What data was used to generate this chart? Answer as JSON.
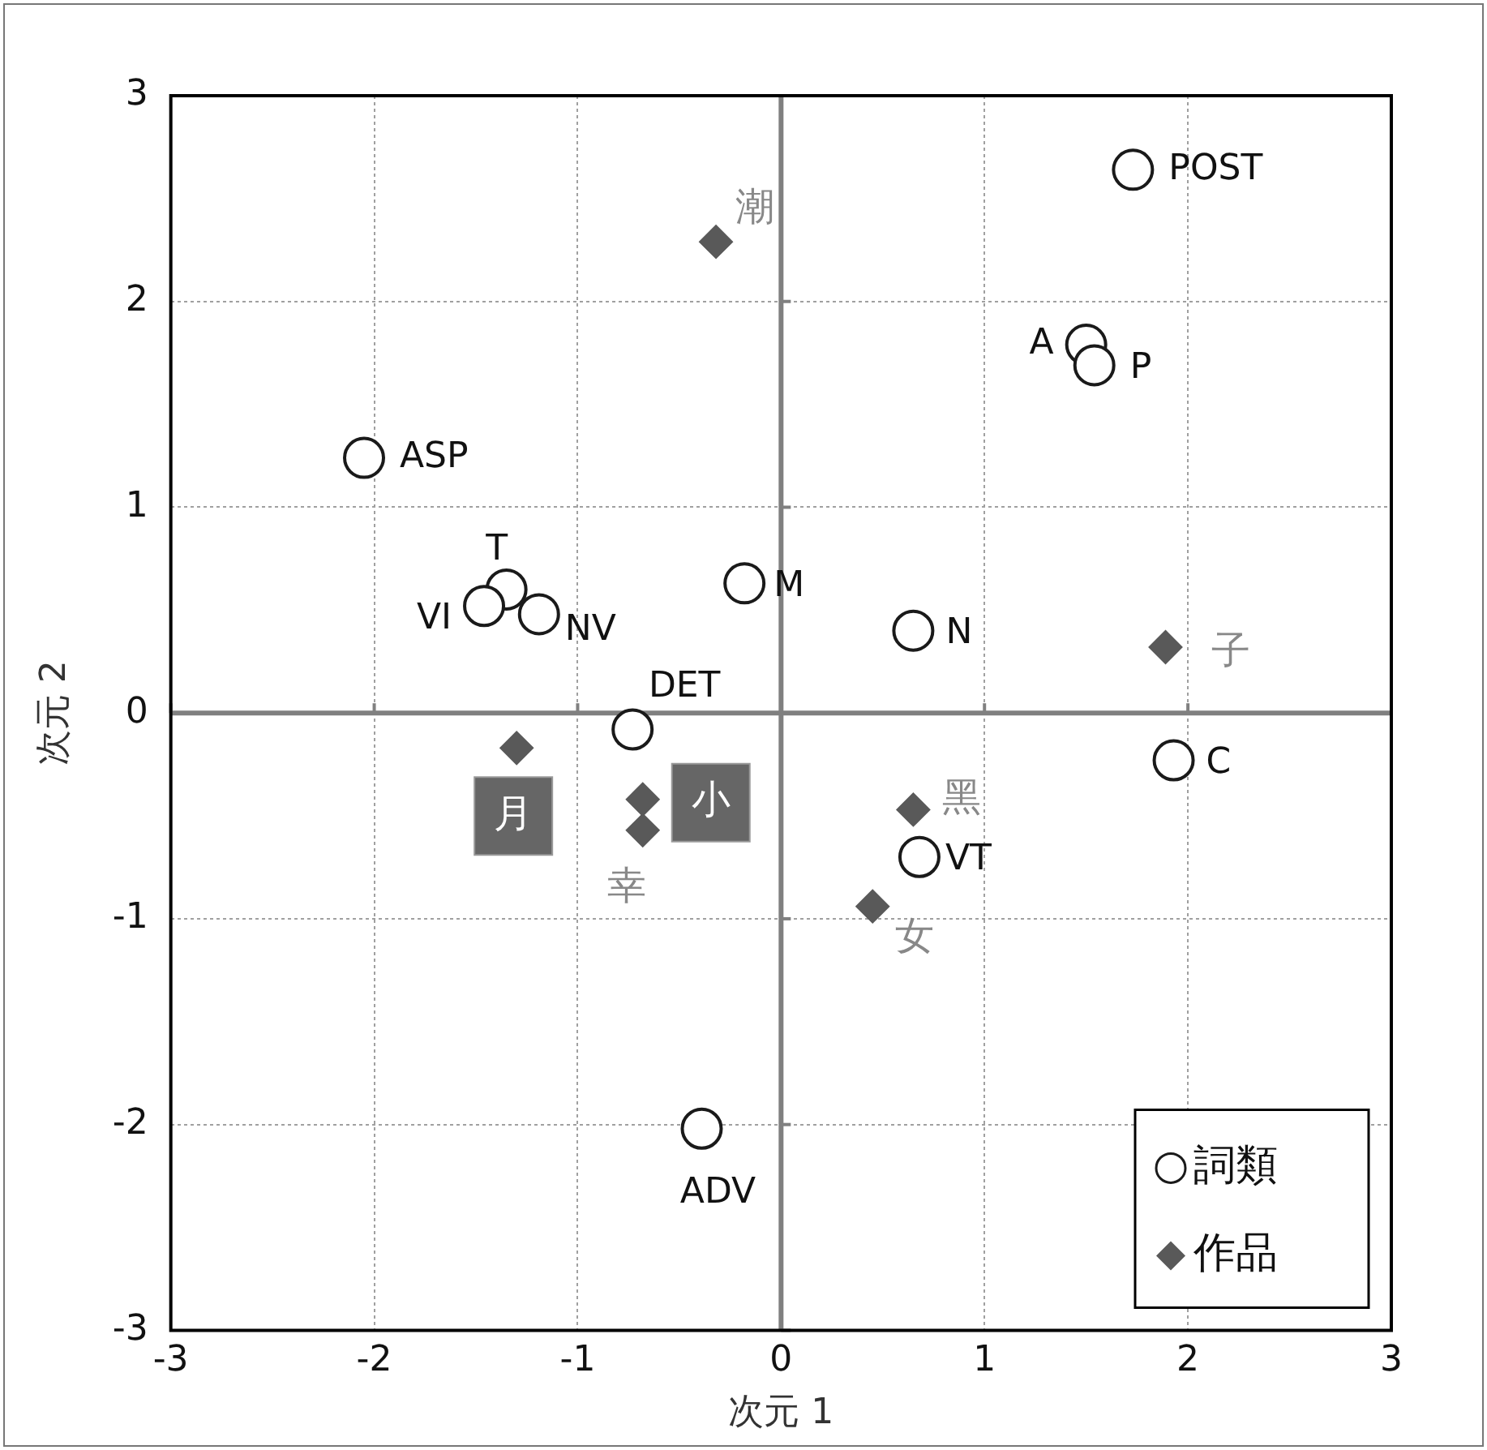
{
  "chart_data": {
    "type": "scatter",
    "xlabel": "次元 1",
    "ylabel": "次元 2",
    "xlim": [
      -3,
      3
    ],
    "ylim": [
      -3,
      3
    ],
    "xticks": [
      -3,
      -2,
      -1,
      0,
      1,
      2,
      3
    ],
    "yticks": [
      -3,
      -2,
      -1,
      0,
      1,
      2,
      3
    ],
    "grid": true,
    "legend": "bottom right",
    "series": [
      {
        "name": "詞類",
        "color": "#1a1a1a",
        "marker": "circle",
        "x": [
          1.73,
          1.5,
          1.54,
          -2.05,
          -1.35,
          -1.46,
          -1.19,
          -0.18,
          0.65,
          -0.73,
          1.93,
          0.68,
          -0.39
        ],
        "values": [
          2.64,
          1.79,
          1.69,
          1.24,
          0.6,
          0.52,
          0.48,
          0.63,
          0.4,
          -0.08,
          -0.23,
          -0.7,
          -2.02
        ],
        "value_labels": [
          "POST",
          "A",
          "P",
          "ASP",
          "T",
          "VI",
          "NV",
          "M",
          "N",
          "DET",
          "C",
          "VT",
          "ADV"
        ]
      },
      {
        "name": "作品",
        "color": "#595959",
        "marker": "diamond",
        "x": [
          -0.32,
          1.89,
          -1.3,
          -0.68,
          -0.68,
          0.65,
          0.45
        ],
        "values": [
          2.29,
          0.32,
          -0.17,
          -0.42,
          -0.57,
          -0.47,
          -0.94
        ],
        "value_labels": [
          "潮",
          "子",
          "月",
          "小",
          "幸",
          "黑",
          "女"
        ]
      }
    ]
  }
}
